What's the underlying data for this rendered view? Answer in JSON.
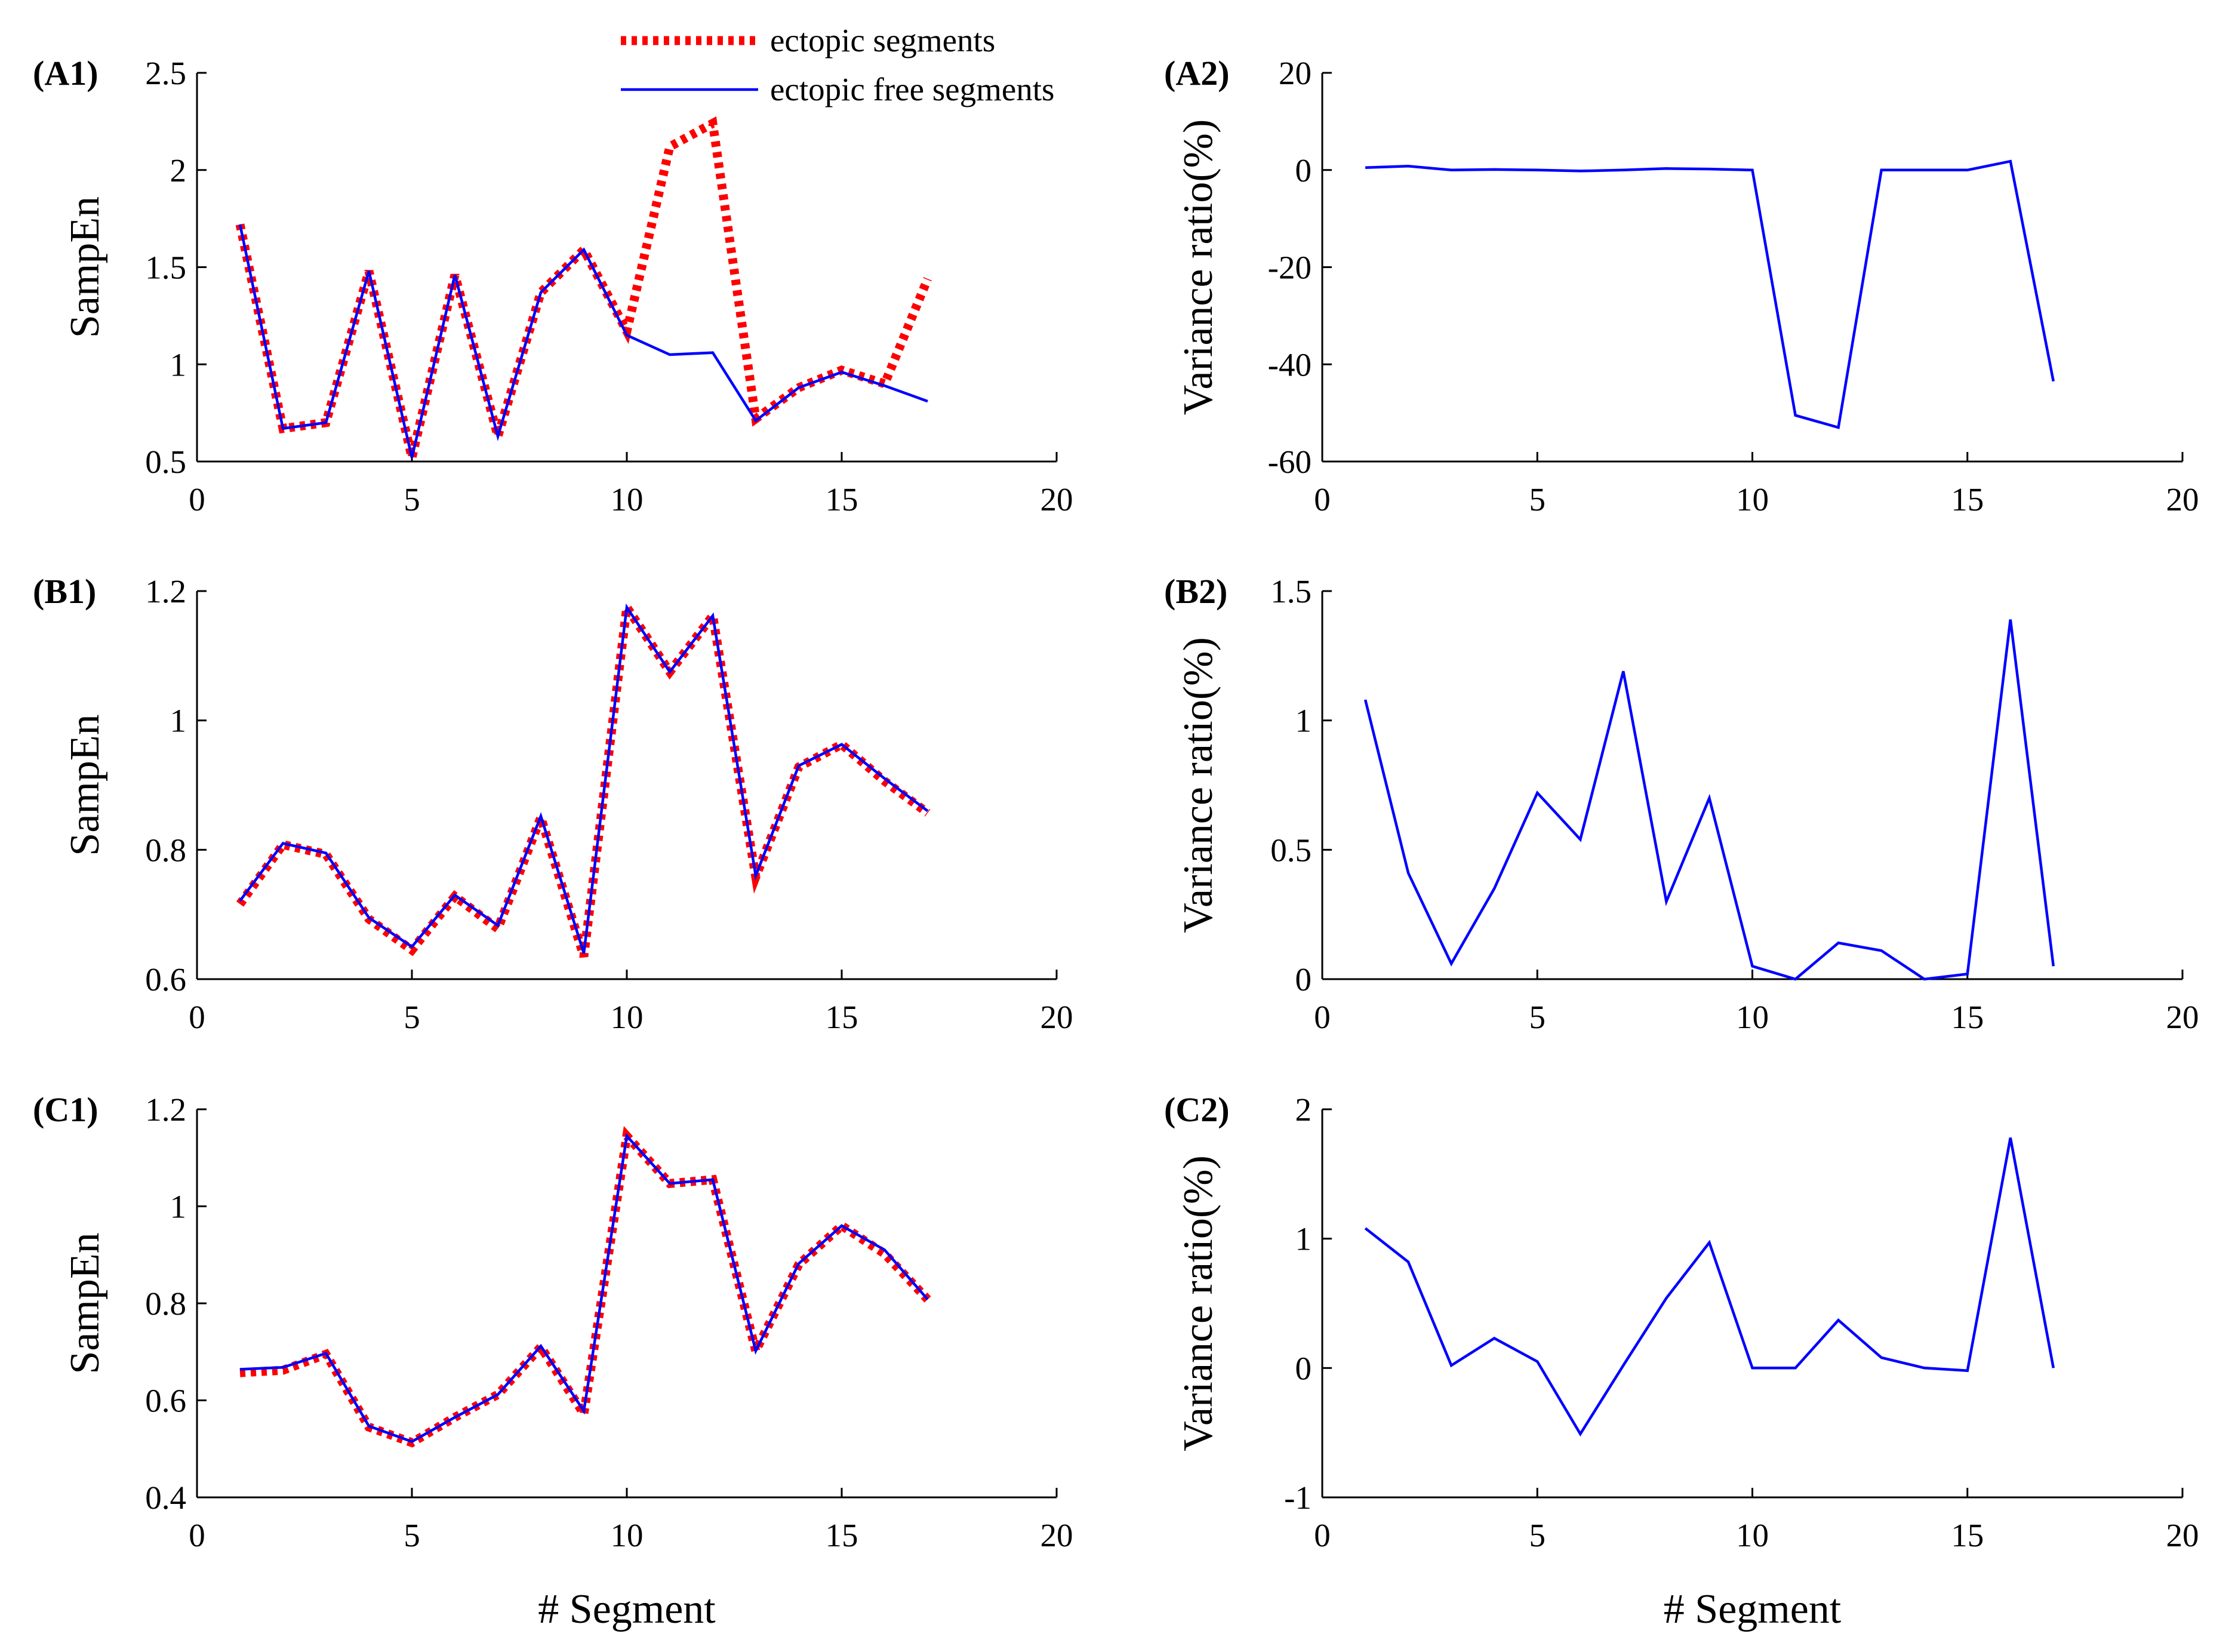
{
  "colors": {
    "ectopic": "#ff0000",
    "ectopic_free": "#0000ff",
    "axis": "#000000"
  },
  "legend": {
    "items": [
      {
        "label": "ectopic segments",
        "style": "dotted-thick",
        "color": "#ff0000"
      },
      {
        "label": "ectopic free segments",
        "style": "solid",
        "color": "#0000ff"
      }
    ]
  },
  "chart_data": [
    {
      "id": "A1",
      "panel_label": "(A1)",
      "type": "line",
      "xlabel": "",
      "ylabel": "SampEn",
      "xlim": [
        0,
        20
      ],
      "ylim": [
        0.5,
        2.5
      ],
      "xticks": [
        "0",
        "5",
        "10",
        "15",
        "20"
      ],
      "xtick_values": [
        0,
        5,
        10,
        15,
        20
      ],
      "yticks": [
        "0.5",
        "1",
        "1.5",
        "2",
        "2.5"
      ],
      "ytick_values": [
        0.5,
        1,
        1.5,
        2,
        2.5
      ],
      "x": [
        1,
        2,
        3,
        4,
        5,
        6,
        7,
        8,
        9,
        10,
        11,
        12,
        13,
        14,
        15,
        16,
        17
      ],
      "series": [
        {
          "name": "ectopic segments",
          "color": "#ff0000",
          "style": "dotted-thick",
          "values": [
            1.72,
            0.67,
            0.7,
            1.48,
            0.52,
            1.46,
            0.63,
            1.37,
            1.59,
            1.17,
            2.12,
            2.24,
            0.72,
            0.88,
            0.97,
            0.9,
            1.44
          ]
        },
        {
          "name": "ectopic free segments",
          "color": "#0000ff",
          "style": "solid",
          "values": [
            1.72,
            0.67,
            0.7,
            1.48,
            0.52,
            1.46,
            0.63,
            1.37,
            1.59,
            1.15,
            1.05,
            1.06,
            0.71,
            0.88,
            0.96,
            0.89,
            0.81
          ]
        }
      ]
    },
    {
      "id": "A2",
      "panel_label": "(A2)",
      "type": "line",
      "xlabel": "",
      "ylabel": "Variance ratio(%)",
      "xlim": [
        0,
        20
      ],
      "ylim": [
        -60,
        20
      ],
      "xticks": [
        "0",
        "5",
        "10",
        "15",
        "20"
      ],
      "xtick_values": [
        0,
        5,
        10,
        15,
        20
      ],
      "yticks": [
        "-60",
        "-40",
        "-20",
        "0",
        "20"
      ],
      "ytick_values": [
        -60,
        -40,
        -20,
        0,
        20
      ],
      "x": [
        1,
        2,
        3,
        4,
        5,
        6,
        7,
        8,
        9,
        10,
        11,
        12,
        13,
        14,
        15,
        16,
        17
      ],
      "series": [
        {
          "name": "variance ratio",
          "color": "#0000ff",
          "style": "solid",
          "values": [
            0.5,
            0.8,
            0.0,
            0.1,
            0.0,
            -0.2,
            0.0,
            0.3,
            0.2,
            0.0,
            -50.5,
            -53.0,
            0.0,
            0.0,
            0.0,
            1.8,
            -43.5
          ]
        }
      ]
    },
    {
      "id": "B1",
      "panel_label": "(B1)",
      "type": "line",
      "xlabel": "",
      "ylabel": "SampEn",
      "xlim": [
        0,
        20
      ],
      "ylim": [
        0.6,
        1.2
      ],
      "xticks": [
        "0",
        "5",
        "10",
        "15",
        "20"
      ],
      "xtick_values": [
        0,
        5,
        10,
        15,
        20
      ],
      "yticks": [
        "0.6",
        "0.8",
        "1",
        "1.2"
      ],
      "ytick_values": [
        0.6,
        0.8,
        1.0,
        1.2
      ],
      "x": [
        1,
        2,
        3,
        4,
        5,
        6,
        7,
        8,
        9,
        10,
        11,
        12,
        13,
        14,
        15,
        16,
        17
      ],
      "series": [
        {
          "name": "ectopic segments",
          "color": "#ff0000",
          "style": "dotted-thick",
          "values": [
            0.716,
            0.808,
            0.793,
            0.693,
            0.645,
            0.728,
            0.678,
            0.85,
            0.635,
            1.175,
            1.075,
            1.162,
            0.758,
            0.928,
            0.963,
            0.906,
            0.857
          ]
        },
        {
          "name": "ectopic free segments",
          "color": "#0000ff",
          "style": "solid",
          "values": [
            0.721,
            0.81,
            0.795,
            0.695,
            0.65,
            0.73,
            0.683,
            0.852,
            0.64,
            1.175,
            1.075,
            1.162,
            0.76,
            0.93,
            0.963,
            0.91,
            0.86
          ]
        }
      ]
    },
    {
      "id": "B2",
      "panel_label": "(B2)",
      "type": "line",
      "xlabel": "",
      "ylabel": "Variance ratio(%)",
      "xlim": [
        0,
        20
      ],
      "ylim": [
        0,
        1.5
      ],
      "xticks": [
        "0",
        "5",
        "10",
        "15",
        "20"
      ],
      "xtick_values": [
        0,
        5,
        10,
        15,
        20
      ],
      "yticks": [
        "0",
        "0.5",
        "1",
        "1.5"
      ],
      "ytick_values": [
        0,
        0.5,
        1.0,
        1.5
      ],
      "x": [
        1,
        2,
        3,
        4,
        5,
        6,
        7,
        8,
        9,
        10,
        11,
        12,
        13,
        14,
        15,
        16,
        17
      ],
      "series": [
        {
          "name": "variance ratio",
          "color": "#0000ff",
          "style": "solid",
          "values": [
            1.08,
            0.41,
            0.06,
            0.35,
            0.72,
            0.54,
            1.19,
            0.3,
            0.7,
            0.05,
            0.0,
            0.14,
            0.11,
            0.0,
            0.02,
            1.39,
            0.05
          ]
        }
      ]
    },
    {
      "id": "C1",
      "panel_label": "(C1)",
      "type": "line",
      "xlabel": "# Segment",
      "ylabel": "SampEn",
      "xlim": [
        0,
        20
      ],
      "ylim": [
        0.4,
        1.2
      ],
      "xticks": [
        "0",
        "5",
        "10",
        "15",
        "20"
      ],
      "xtick_values": [
        0,
        5,
        10,
        15,
        20
      ],
      "yticks": [
        "0.4",
        "0.6",
        "0.8",
        "1",
        "1.2"
      ],
      "ytick_values": [
        0.4,
        0.6,
        0.8,
        1.0,
        1.2
      ],
      "x": [
        1,
        2,
        3,
        4,
        5,
        6,
        7,
        8,
        9,
        10,
        11,
        12,
        13,
        14,
        15,
        16,
        17
      ],
      "series": [
        {
          "name": "ectopic segments",
          "color": "#ff0000",
          "style": "dotted-thick",
          "values": [
            0.657,
            0.662,
            0.695,
            0.545,
            0.513,
            0.565,
            0.612,
            0.71,
            0.572,
            1.145,
            1.047,
            1.055,
            0.702,
            0.88,
            0.96,
            0.902,
            0.808
          ]
        },
        {
          "name": "ectopic free segments",
          "color": "#0000ff",
          "style": "solid",
          "values": [
            0.664,
            0.668,
            0.697,
            0.547,
            0.515,
            0.565,
            0.612,
            0.712,
            0.578,
            1.145,
            1.047,
            1.055,
            0.702,
            0.882,
            0.96,
            0.91,
            0.808
          ]
        }
      ]
    },
    {
      "id": "C2",
      "panel_label": "(C2)",
      "type": "line",
      "xlabel": "# Segment",
      "ylabel": "Variance ratio(%)",
      "xlim": [
        0,
        20
      ],
      "ylim": [
        -1,
        2
      ],
      "xticks": [
        "0",
        "5",
        "10",
        "15",
        "20"
      ],
      "xtick_values": [
        0,
        5,
        10,
        15,
        20
      ],
      "yticks": [
        "-1",
        "0",
        "1",
        "2"
      ],
      "ytick_values": [
        -1,
        0,
        1,
        2
      ],
      "x": [
        1,
        2,
        3,
        4,
        5,
        6,
        7,
        8,
        9,
        10,
        11,
        12,
        13,
        14,
        15,
        16,
        17
      ],
      "series": [
        {
          "name": "variance ratio",
          "color": "#0000ff",
          "style": "solid",
          "values": [
            1.08,
            0.82,
            0.02,
            0.23,
            0.05,
            -0.51,
            0.02,
            0.54,
            0.97,
            0.0,
            0.0,
            0.37,
            0.08,
            0.0,
            -0.02,
            1.78,
            0.0
          ]
        }
      ]
    }
  ]
}
